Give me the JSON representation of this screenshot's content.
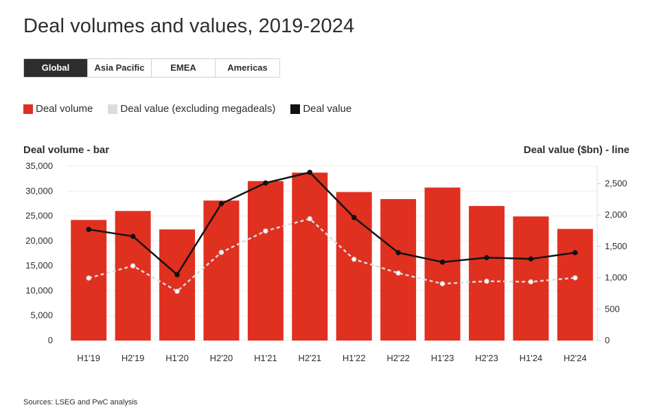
{
  "title": "Deal volumes and values, 2019-2024",
  "tabs": [
    {
      "label": "Global",
      "active": true
    },
    {
      "label": "Asia Pacific",
      "active": false
    },
    {
      "label": "EMEA",
      "active": false
    },
    {
      "label": "Americas",
      "active": false
    }
  ],
  "legend": [
    {
      "label": "Deal volume",
      "color": "#e03020"
    },
    {
      "label": "Deal value (excluding megadeals)",
      "color": "#dcdcdc"
    },
    {
      "label": "Deal value",
      "color": "#111111"
    }
  ],
  "source": "Sources: LSEG and PwC analysis",
  "chart_data": {
    "type": "bar",
    "title": "Deal volumes and values, 2019-2024",
    "ylabel": "Deal volume - bar",
    "y2label": "Deal value ($bn) - line",
    "categories": [
      "H1'19",
      "H2'19",
      "H1'20",
      "H2'20",
      "H1'21",
      "H2'21",
      "H1'22",
      "H2'22",
      "H1'23",
      "H2'23",
      "H1'24",
      "H2'24"
    ],
    "ylim": [
      0,
      35000
    ],
    "y2lim": [
      0,
      2778
    ],
    "yticks": [
      "35,000",
      "30,000",
      "25,000",
      "20,000",
      "15,000",
      "10,000",
      "5,000",
      "0"
    ],
    "yticks_values": [
      35000,
      30000,
      25000,
      20000,
      15000,
      10000,
      5000,
      0
    ],
    "y2ticks": [
      "2,500",
      "2,000",
      "1,500",
      "1,000",
      "500",
      "0"
    ],
    "y2ticks_values": [
      2500,
      2000,
      1500,
      1000,
      500,
      0
    ],
    "grid": true,
    "series": [
      {
        "name": "Deal volume",
        "type": "bar",
        "axis": "left",
        "color": "#e03020",
        "values": [
          24200,
          26000,
          22300,
          28100,
          32000,
          33700,
          29800,
          28400,
          30700,
          27000,
          24900,
          22400
        ]
      },
      {
        "name": "Deal value (excluding megadeals)",
        "type": "line",
        "axis": "right",
        "color": "#dcdcdc",
        "dashed": true,
        "values": [
          995,
          1190,
          785,
          1405,
          1745,
          1940,
          1295,
          1075,
          905,
          945,
          935,
          1000
        ]
      },
      {
        "name": "Deal value",
        "type": "line",
        "axis": "right",
        "color": "#111111",
        "dashed": false,
        "values": [
          1770,
          1660,
          1050,
          2180,
          2510,
          2680,
          1960,
          1400,
          1250,
          1320,
          1300,
          1400
        ]
      }
    ]
  }
}
